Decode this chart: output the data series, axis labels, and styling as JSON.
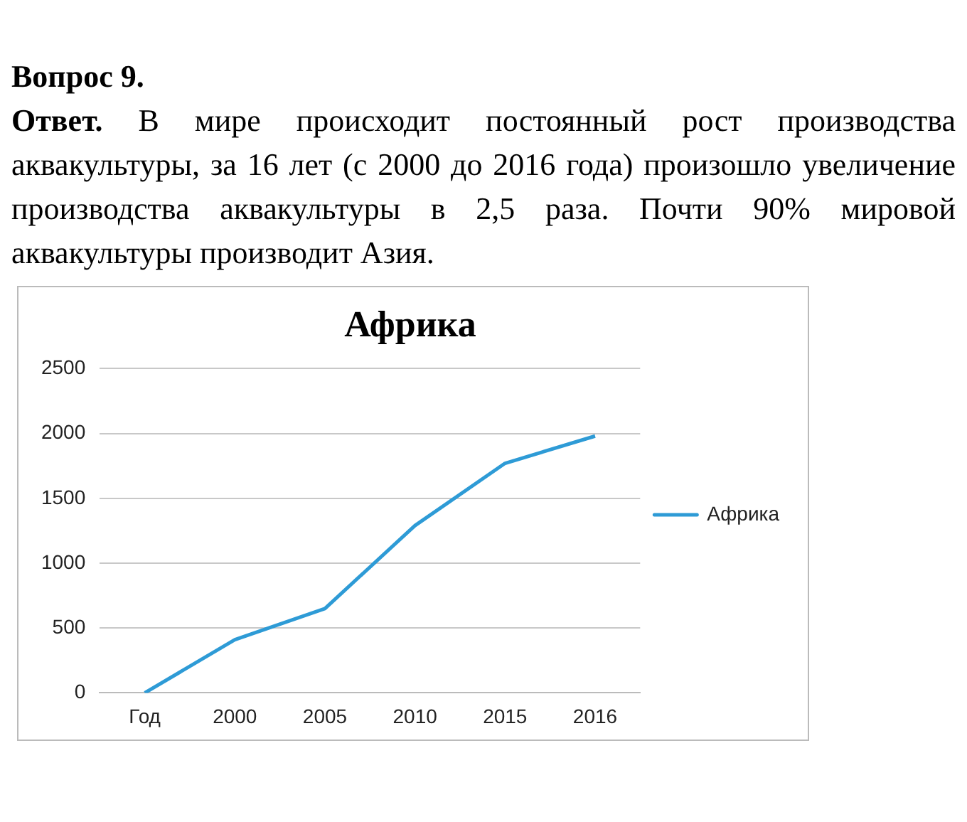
{
  "chart_data": {
    "type": "line",
    "title": "Африка",
    "annotations": [
      "Вопрос 9.",
      "Ответ.",
      "В мире происходит постоянный рост производства аквакультуры, за 16 лет (с 2000 до 2016 года) произошло увеличение производства аквакультуры в 2,5 раза. Почти 90% мировой аквакультуры производит Азия."
    ],
    "categories": [
      "Год",
      "2000",
      "2005",
      "2010",
      "2015",
      "2016"
    ],
    "series": [
      {
        "name": "Африка",
        "color": "#2e9bd6",
        "values": [
          0,
          410,
          650,
          1290,
          1770,
          1980
        ]
      }
    ],
    "ylim": [
      0,
      2500
    ],
    "yticks": [
      0,
      500,
      1000,
      1500,
      2000,
      2500
    ],
    "grid": "y",
    "legend": "right",
    "marker": "none",
    "line_style": "solid"
  }
}
